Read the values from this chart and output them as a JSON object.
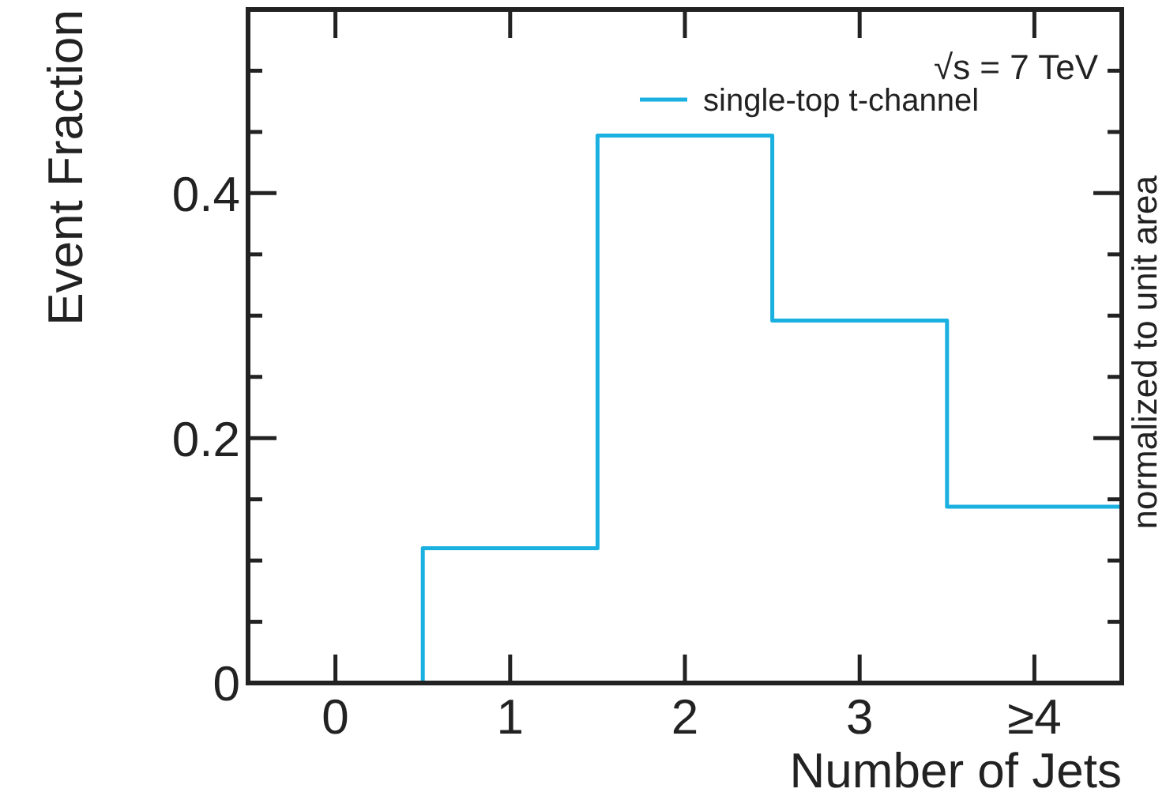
{
  "chart_data": {
    "type": "histogram",
    "xlabel": "Number of Jets",
    "ylabel": "Event Fraction",
    "bins": [
      -0.5,
      0.5,
      1.5,
      2.5,
      3.5,
      4.5
    ],
    "series": [
      {
        "name": "single-top t-channel",
        "color": "#1ab0e0",
        "values": [
          0,
          0.11,
          0.447,
          0.296,
          0.144
        ]
      }
    ],
    "xlim": [
      -0.5,
      4.5
    ],
    "xticks": [
      0,
      1,
      2,
      3,
      {
        "value": 4,
        "label": "≥4"
      }
    ],
    "ylim": [
      0,
      0.55
    ],
    "yticks": [
      0,
      {
        "value": 0.05,
        "label": null
      },
      {
        "value": 0.1,
        "label": null
      },
      {
        "value": 0.15,
        "label": null
      },
      0.2,
      {
        "value": 0.25,
        "label": null
      },
      {
        "value": 0.3,
        "label": null
      },
      {
        "value": 0.35,
        "label": null
      },
      0.4,
      {
        "value": 0.45,
        "label": null
      },
      {
        "value": 0.5,
        "label": null
      }
    ],
    "annotations": [
      "√s = 7 TeV",
      "normalized to unit area"
    ],
    "legend": "top right",
    "grid": false
  }
}
